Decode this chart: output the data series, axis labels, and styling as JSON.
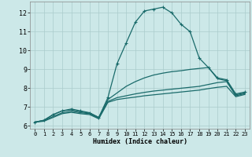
{
  "xlabel": "Humidex (Indice chaleur)",
  "bg_color": "#cce8e8",
  "grid_color": "#aacccc",
  "line_color": "#1a6b6b",
  "xlim": [
    -0.5,
    23.5
  ],
  "ylim": [
    5.85,
    12.6
  ],
  "yticks": [
    6,
    7,
    8,
    9,
    10,
    11,
    12
  ],
  "xticks": [
    0,
    1,
    2,
    3,
    4,
    5,
    6,
    7,
    8,
    9,
    10,
    11,
    12,
    13,
    14,
    15,
    16,
    17,
    18,
    19,
    20,
    21,
    22,
    23
  ],
  "lines": [
    {
      "x": [
        0,
        1,
        2,
        3,
        4,
        5,
        6,
        7,
        8,
        9,
        10,
        11,
        12,
        13,
        14,
        15,
        16,
        17,
        18,
        19,
        20,
        21,
        22,
        23
      ],
      "y": [
        6.2,
        6.3,
        6.6,
        6.8,
        6.9,
        6.8,
        6.7,
        6.45,
        7.5,
        9.3,
        10.4,
        11.5,
        12.1,
        12.2,
        12.3,
        12.0,
        11.4,
        11.0,
        9.6,
        9.1,
        8.55,
        8.45,
        7.7,
        7.8
      ],
      "marker": "+",
      "markersize": 3.5,
      "lw": 0.9
    },
    {
      "x": [
        0,
        1,
        2,
        3,
        4,
        5,
        6,
        7,
        8,
        9,
        10,
        11,
        12,
        13,
        14,
        15,
        16,
        17,
        18,
        19,
        20,
        21,
        22,
        23
      ],
      "y": [
        6.2,
        6.3,
        6.6,
        6.8,
        6.85,
        6.75,
        6.68,
        6.45,
        7.4,
        7.75,
        8.1,
        8.35,
        8.55,
        8.7,
        8.8,
        8.88,
        8.93,
        9.0,
        9.05,
        9.1,
        8.5,
        8.4,
        7.65,
        7.75
      ],
      "marker": null,
      "lw": 0.9
    },
    {
      "x": [
        0,
        1,
        2,
        3,
        4,
        5,
        6,
        7,
        8,
        9,
        10,
        11,
        12,
        13,
        14,
        15,
        16,
        17,
        18,
        19,
        20,
        21,
        22,
        23
      ],
      "y": [
        6.2,
        6.28,
        6.5,
        6.7,
        6.78,
        6.7,
        6.65,
        6.4,
        7.3,
        7.5,
        7.6,
        7.7,
        7.78,
        7.85,
        7.9,
        7.95,
        8.0,
        8.05,
        8.1,
        8.2,
        8.3,
        8.35,
        7.6,
        7.72
      ],
      "marker": null,
      "lw": 0.9
    },
    {
      "x": [
        0,
        1,
        2,
        3,
        4,
        5,
        6,
        7,
        8,
        9,
        10,
        11,
        12,
        13,
        14,
        15,
        16,
        17,
        18,
        19,
        20,
        21,
        22,
        23
      ],
      "y": [
        6.2,
        6.25,
        6.45,
        6.65,
        6.72,
        6.65,
        6.6,
        6.38,
        7.25,
        7.4,
        7.47,
        7.53,
        7.6,
        7.65,
        7.7,
        7.75,
        7.8,
        7.85,
        7.9,
        7.98,
        8.05,
        8.1,
        7.55,
        7.67
      ],
      "marker": null,
      "lw": 0.9
    }
  ]
}
